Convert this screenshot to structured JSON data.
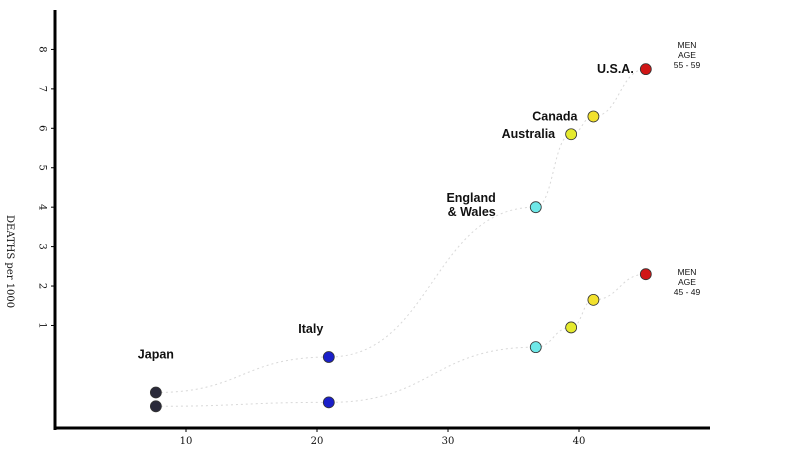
{
  "chart_data": {
    "type": "scatter",
    "title": "",
    "xlabel": "",
    "ylabel": "DEATHS per 1000",
    "xlim": [
      0,
      50
    ],
    "ylim": [
      -1.6,
      9.0
    ],
    "xticks": [
      "10",
      "20",
      "30",
      "40"
    ],
    "yticks": [
      "1",
      "2",
      "3",
      "4",
      "5",
      "6",
      "7",
      "8"
    ],
    "grid": false,
    "groups": [
      {
        "label": "MEN\nAGE\n55 - 59",
        "points": [
          {
            "country": "Japan",
            "x": 7.7,
            "y": -0.7,
            "color": "#2a2a3a"
          },
          {
            "country": "Italy",
            "x": 20.9,
            "y": 0.2,
            "color": "#1a1fc9"
          },
          {
            "country": "England & Wales",
            "x": 36.7,
            "y": 4.0,
            "color": "#6ee8e8"
          },
          {
            "country": "Australia",
            "x": 39.4,
            "y": 5.85,
            "color": "#e5ea2e"
          },
          {
            "country": "Canada",
            "x": 41.1,
            "y": 6.3,
            "color": "#f2e12e"
          },
          {
            "country": "U.S.A.",
            "x": 45.1,
            "y": 7.5,
            "color": "#d01616"
          }
        ]
      },
      {
        "label": "MEN\nAGE\n45 - 49",
        "points": [
          {
            "country": "Japan",
            "x": 7.7,
            "y": -1.05,
            "color": "#2a2a3a"
          },
          {
            "country": "Italy",
            "x": 20.9,
            "y": -0.95,
            "color": "#1a1fc9"
          },
          {
            "country": "England & Wales",
            "x": 36.7,
            "y": 0.45,
            "color": "#6ee8e8"
          },
          {
            "country": "Australia",
            "x": 39.4,
            "y": 0.95,
            "color": "#e5ea2e"
          },
          {
            "country": "Canada",
            "x": 41.1,
            "y": 1.65,
            "color": "#f2e12e"
          },
          {
            "country": "U.S.A.",
            "x": 45.1,
            "y": 2.3,
            "color": "#d01616"
          }
        ]
      }
    ],
    "country_labels": [
      {
        "text": "Japan",
        "x": 7.7,
        "y": -0.3
      },
      {
        "text": "Italy",
        "x": 20.9,
        "y": 0.55
      },
      {
        "text": "England\n& Wales",
        "x": 36.7,
        "y": 4.0
      },
      {
        "text": "Australia",
        "x": 39.4,
        "y": 5.85
      },
      {
        "text": "Canada",
        "x": 41.1,
        "y": 6.3
      },
      {
        "text": "U.S.A.",
        "x": 45.1,
        "y": 7.5
      }
    ]
  }
}
